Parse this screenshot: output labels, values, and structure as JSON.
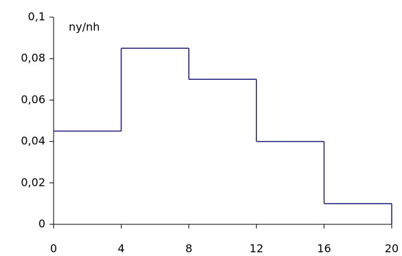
{
  "chart_data": {
    "type": "histogram",
    "y_label": "ny/nh",
    "bins": [
      0,
      4,
      8,
      12,
      16,
      20
    ],
    "values": [
      0.045,
      0.085,
      0.07,
      0.04,
      0.01
    ],
    "color": "#1c1c7c",
    "xlim": [
      0,
      20
    ],
    "xticks": [
      0,
      4,
      8,
      12,
      16,
      20
    ],
    "ylim": [
      0,
      0.1
    ],
    "yticks": [
      0,
      {
        "value": 0.02,
        "label": "0,02"
      },
      {
        "value": 0.04,
        "label": "0,04"
      },
      {
        "value": 0.06,
        "label": "0,06"
      },
      {
        "value": 0.08,
        "label": "0,08"
      },
      {
        "value": 0.1,
        "label": "0,1"
      }
    ]
  }
}
